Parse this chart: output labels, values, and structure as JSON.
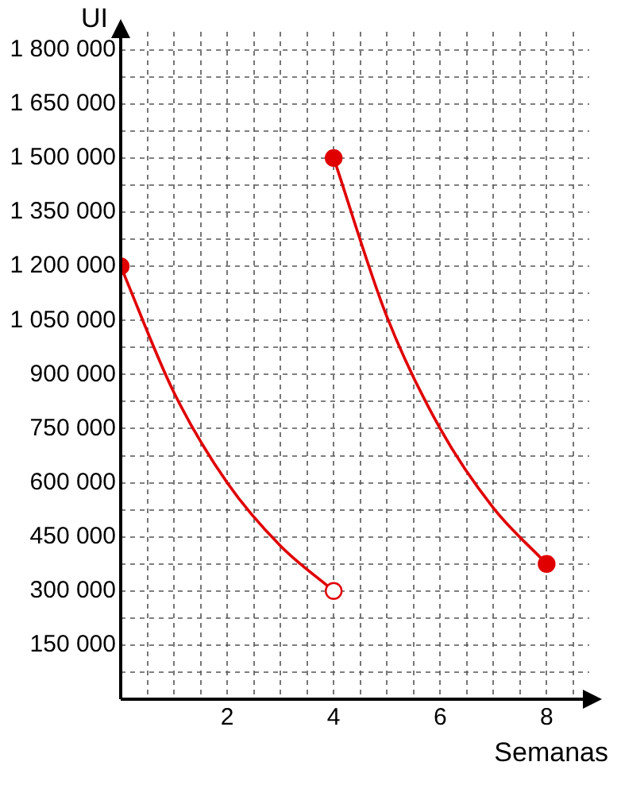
{
  "chart_data": {
    "type": "line",
    "xlabel": "Semanas",
    "ylabel": "UI",
    "legend": false,
    "grid": true,
    "marker": "none",
    "xlim": [
      0,
      8.8
    ],
    "ylim": [
      0,
      1850000
    ],
    "xticks": [
      {
        "value": 0.5,
        "label": null
      },
      {
        "value": 1,
        "label": null
      },
      {
        "value": 1.5,
        "label": null
      },
      2,
      {
        "value": 2.5,
        "label": null
      },
      {
        "value": 3,
        "label": null
      },
      {
        "value": 3.5,
        "label": null
      },
      4,
      {
        "value": 4.5,
        "label": null
      },
      {
        "value": 5,
        "label": null
      },
      {
        "value": 5.5,
        "label": null
      },
      6,
      {
        "value": 6.5,
        "label": null
      },
      {
        "value": 7,
        "label": null
      },
      {
        "value": 7.5,
        "label": null
      },
      8,
      {
        "value": 8.5,
        "label": null
      }
    ],
    "yticks": [
      {
        "value": 75000,
        "label": null
      },
      {
        "value": 150000,
        "label": "150 000"
      },
      {
        "value": 225000,
        "label": null
      },
      {
        "value": 300000,
        "label": "300 000"
      },
      {
        "value": 375000,
        "label": null
      },
      {
        "value": 450000,
        "label": "450 000"
      },
      {
        "value": 525000,
        "label": null
      },
      {
        "value": 600000,
        "label": "600 000"
      },
      {
        "value": 675000,
        "label": null
      },
      {
        "value": 750000,
        "label": "750 000"
      },
      {
        "value": 825000,
        "label": null
      },
      {
        "value": 900000,
        "label": "900 000"
      },
      {
        "value": 975000,
        "label": null
      },
      {
        "value": 1050000,
        "label": "1 050 000"
      },
      {
        "value": 1125000,
        "label": null
      },
      {
        "value": 1200000,
        "label": "1 200 000"
      },
      {
        "value": 1275000,
        "label": null
      },
      {
        "value": 1350000,
        "label": "1 350 000"
      },
      {
        "value": 1425000,
        "label": null
      },
      {
        "value": 1500000,
        "label": "1 500 000"
      },
      {
        "value": 1575000,
        "label": null
      },
      {
        "value": 1650000,
        "label": "1 650 000"
      },
      {
        "value": 1725000,
        "label": null
      },
      {
        "value": 1800000,
        "label": "1 800 000"
      }
    ],
    "series": [
      {
        "color": "#e00000",
        "x": [
          0,
          1,
          2,
          3,
          4
        ],
        "values": [
          1200000,
          850000,
          600000,
          425000,
          300000
        ]
      },
      {
        "color": "#e00000",
        "x": [
          4,
          5,
          6,
          7,
          8
        ],
        "values": [
          1500000,
          1060000,
          750000,
          530000,
          375000
        ]
      },
      {
        "type": "scatter",
        "color": "#e00000",
        "marker": "circle",
        "x": [
          0,
          4,
          8
        ],
        "values": [
          1200000,
          1500000,
          375000
        ]
      },
      {
        "type": "scatter",
        "color": "#ffffff",
        "marker": "circle",
        "x": [
          4
        ],
        "values": [
          300000
        ]
      }
    ]
  }
}
